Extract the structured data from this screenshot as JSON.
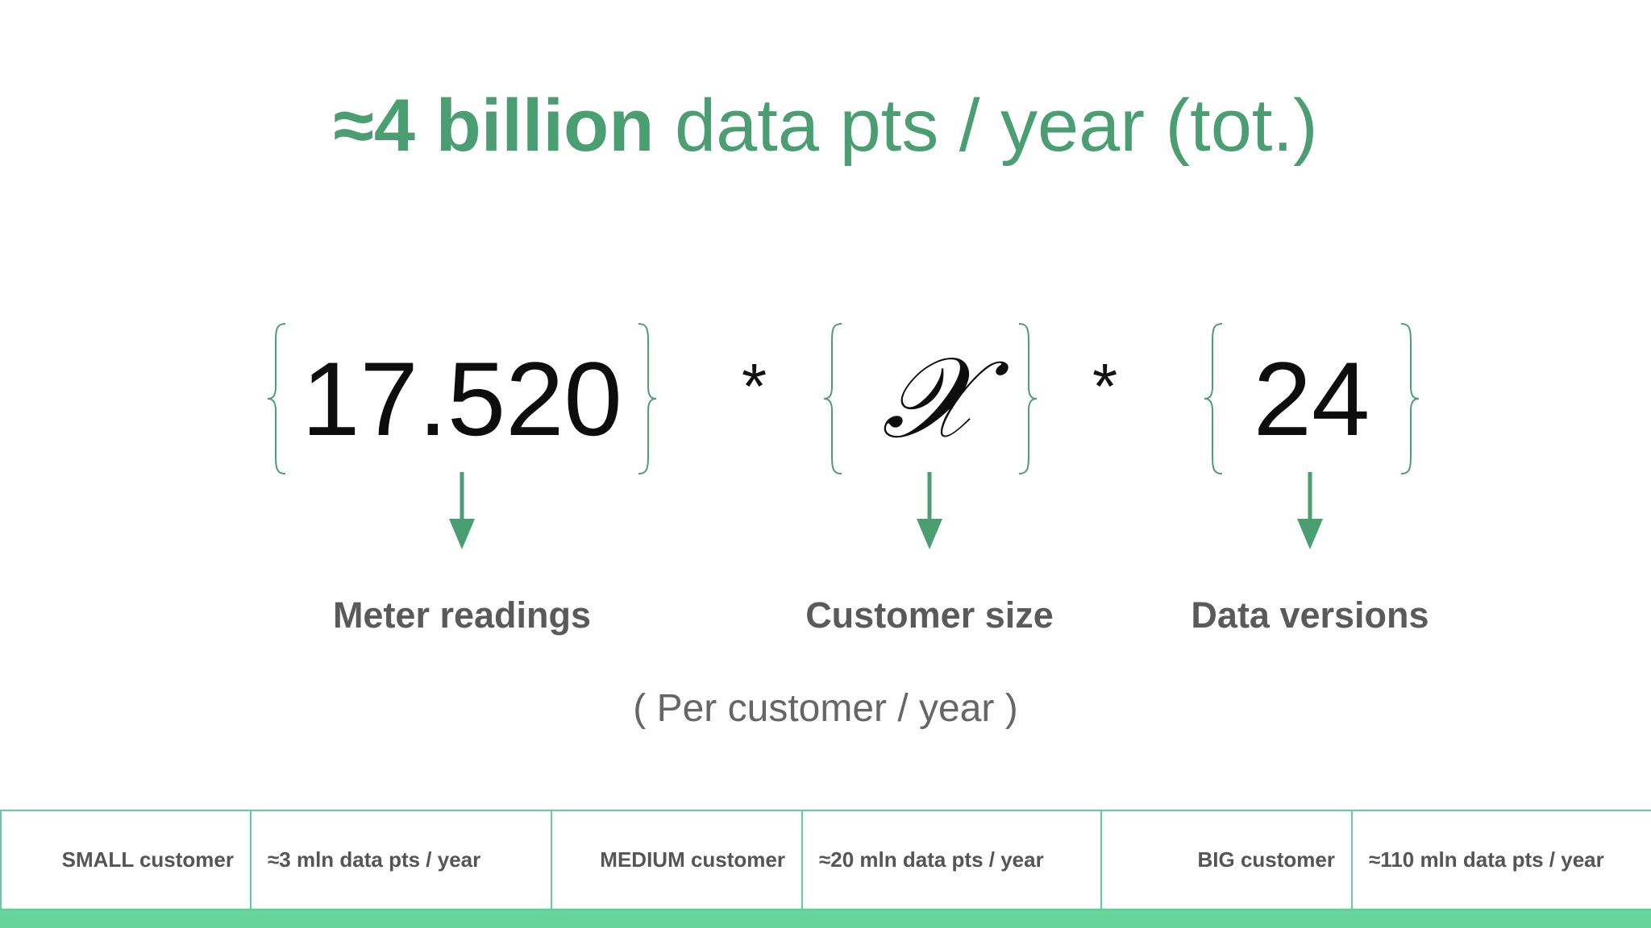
{
  "title": {
    "bold": "≈4 billion",
    "rest": " data pts / year (tot.)"
  },
  "formula": {
    "term1": "17.520",
    "op1": "*",
    "term2": "𝒳",
    "op2": "*",
    "term3": "24"
  },
  "labels": {
    "meter": "Meter readings",
    "size": "Customer size",
    "versions": "Data versions"
  },
  "subnote": "( Per customer / year )",
  "table": {
    "small_name": "SMALL customer",
    "small_val": "≈3 mln data pts / year",
    "medium_name": "MEDIUM customer",
    "medium_val": "≈20 mln data pts / year",
    "big_name": "BIG customer",
    "big_val": "≈110 mln data pts / year"
  },
  "colors": {
    "accent": "#4a9e72",
    "border": "#66cc99",
    "bar": "#66d49b"
  }
}
